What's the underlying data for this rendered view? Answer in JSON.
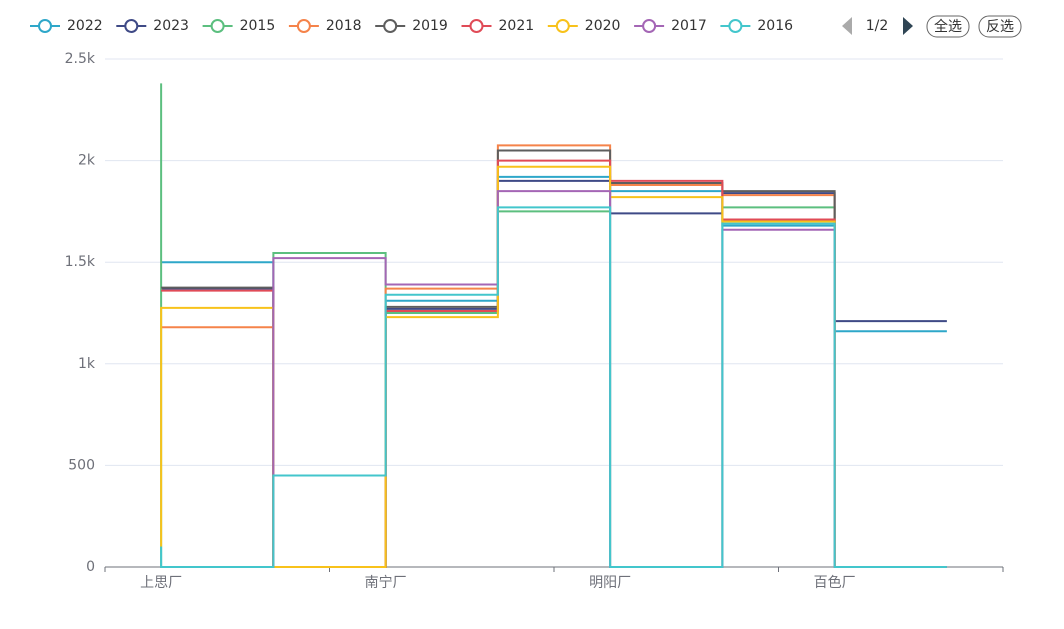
{
  "chart_data": {
    "type": "step-line",
    "categories": [
      "上思厂",
      null,
      "南宁厂",
      null,
      "明阳厂",
      null,
      "百色厂",
      null
    ],
    "series": [
      {
        "name": "2022",
        "color": "#2ea7c9",
        "values": [
          1500,
          1500,
          0,
          1310,
          1920,
          1850,
          1680,
          1160
        ]
      },
      {
        "name": "2023",
        "color": "#3f4a86",
        "values": [
          1370,
          1370,
          0,
          1270,
          1900,
          1740,
          1840,
          1210
        ]
      },
      {
        "name": "2015",
        "color": "#5cbf7f",
        "values": [
          2380,
          0,
          1545,
          1250,
          1750,
          0,
          1770,
          0
        ]
      },
      {
        "name": "2018",
        "color": "#f5834a",
        "values": [
          1180,
          1180,
          0,
          1370,
          2075,
          1880,
          1830,
          0
        ]
      },
      {
        "name": "2019",
        "color": "#5e5e5e",
        "values": [
          1375,
          1375,
          0,
          1280,
          2050,
          1890,
          1850,
          0
        ]
      },
      {
        "name": "2021",
        "color": "#e04b57",
        "values": [
          1360,
          1360,
          0,
          1260,
          2000,
          1900,
          1710,
          0
        ]
      },
      {
        "name": "2020",
        "color": "#f8c21b",
        "values": [
          100,
          1275,
          0,
          1230,
          1970,
          1820,
          1700,
          0
        ]
      },
      {
        "name": "2017",
        "color": "#a466b5",
        "values": [
          0,
          0,
          1520,
          1390,
          1850,
          0,
          1660,
          0
        ]
      },
      {
        "name": "2016",
        "color": "#43c6cc",
        "values": [
          100,
          0,
          450,
          1340,
          1770,
          0,
          1690,
          0
        ]
      }
    ],
    "ylim": [
      0,
      2500
    ],
    "yticks": [
      0,
      500,
      {
        "value": 1000,
        "label": "1k"
      },
      {
        "value": 1500,
        "label": "1.5k"
      },
      {
        "value": 2000,
        "label": "2k"
      },
      {
        "value": 2500,
        "label": "2.5k"
      }
    ],
    "grid": true,
    "legend": {
      "page": "1/2",
      "select_all": "全选",
      "invert": "反选"
    }
  }
}
